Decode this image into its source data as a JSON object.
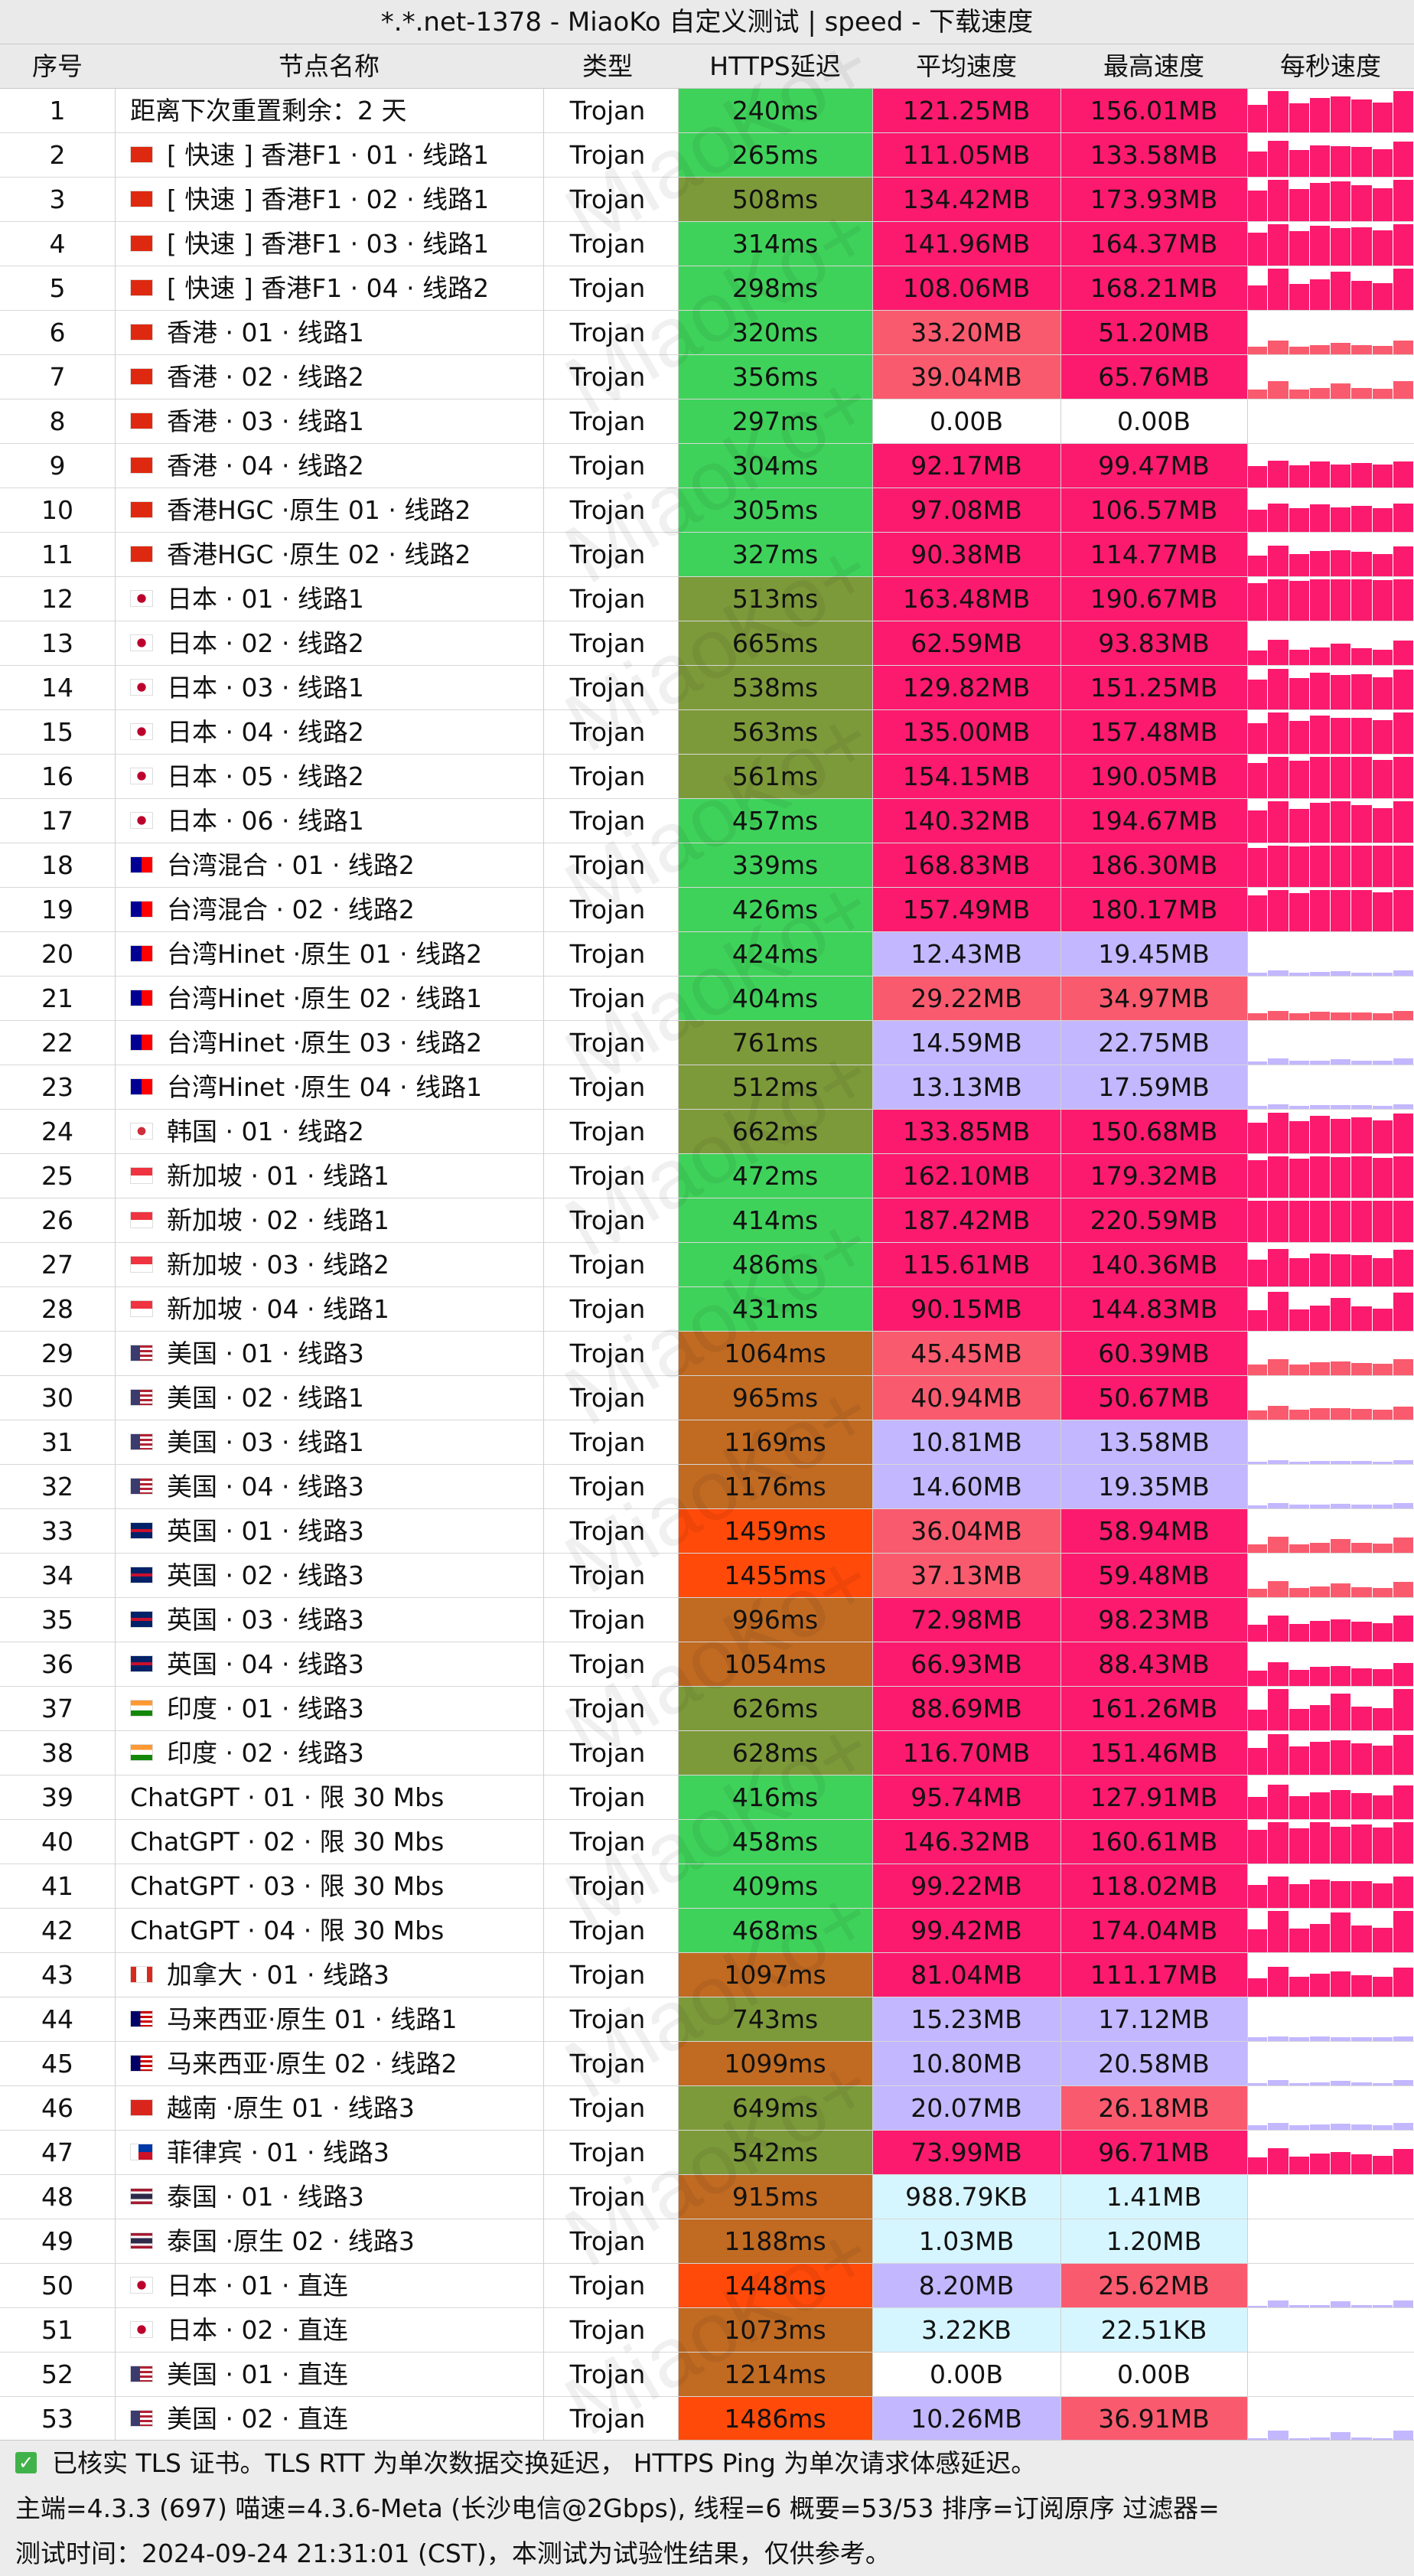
{
  "title": "*.*.net-1378 - MiaoKo 自定义测试 | speed - 下载速度",
  "headers": {
    "idx": "序号",
    "name": "节点名称",
    "type": "类型",
    "latency": "HTTPS延迟",
    "avg": "平均速度",
    "max": "最高速度",
    "per_sec": "每秒速度"
  },
  "watermark": "MiaoKo+",
  "rows": [
    {
      "idx": "1",
      "flag": "",
      "name": "距离下次重置剩余：2 天",
      "type": "Trojan",
      "latency": "240ms",
      "avg": "121.25MB",
      "max": "156.01MB"
    },
    {
      "idx": "2",
      "flag": "hk",
      "name": "[ 快速 ] 香港F1 · 01 · 线路1",
      "type": "Trojan",
      "latency": "265ms",
      "avg": "111.05MB",
      "max": "133.58MB"
    },
    {
      "idx": "3",
      "flag": "hk",
      "name": "[ 快速 ] 香港F1 · 02 · 线路1",
      "type": "Trojan",
      "latency": "508ms",
      "avg": "134.42MB",
      "max": "173.93MB"
    },
    {
      "idx": "4",
      "flag": "hk",
      "name": "[ 快速 ] 香港F1 · 03 · 线路1",
      "type": "Trojan",
      "latency": "314ms",
      "avg": "141.96MB",
      "max": "164.37MB"
    },
    {
      "idx": "5",
      "flag": "hk",
      "name": "[ 快速 ] 香港F1 · 04 · 线路2",
      "type": "Trojan",
      "latency": "298ms",
      "avg": "108.06MB",
      "max": "168.21MB"
    },
    {
      "idx": "6",
      "flag": "hk",
      "name": "香港 · 01 · 线路1",
      "type": "Trojan",
      "latency": "320ms",
      "avg": "33.20MB",
      "max": "51.20MB"
    },
    {
      "idx": "7",
      "flag": "hk",
      "name": "香港 · 02 · 线路2",
      "type": "Trojan",
      "latency": "356ms",
      "avg": "39.04MB",
      "max": "65.76MB"
    },
    {
      "idx": "8",
      "flag": "hk",
      "name": "香港 · 03 · 线路1",
      "type": "Trojan",
      "latency": "297ms",
      "avg": "0.00B",
      "max": "0.00B"
    },
    {
      "idx": "9",
      "flag": "hk",
      "name": "香港 · 04 · 线路2",
      "type": "Trojan",
      "latency": "304ms",
      "avg": "92.17MB",
      "max": "99.47MB"
    },
    {
      "idx": "10",
      "flag": "hk",
      "name": "香港HGC ·原生 01 · 线路2",
      "type": "Trojan",
      "latency": "305ms",
      "avg": "97.08MB",
      "max": "106.57MB"
    },
    {
      "idx": "11",
      "flag": "hk",
      "name": "香港HGC ·原生 02 · 线路2",
      "type": "Trojan",
      "latency": "327ms",
      "avg": "90.38MB",
      "max": "114.77MB"
    },
    {
      "idx": "12",
      "flag": "jp",
      "name": "日本 · 01 · 线路1",
      "type": "Trojan",
      "latency": "513ms",
      "avg": "163.48MB",
      "max": "190.67MB"
    },
    {
      "idx": "13",
      "flag": "jp",
      "name": "日本 · 02 · 线路2",
      "type": "Trojan",
      "latency": "665ms",
      "avg": "62.59MB",
      "max": "93.83MB"
    },
    {
      "idx": "14",
      "flag": "jp",
      "name": "日本 · 03 · 线路1",
      "type": "Trojan",
      "latency": "538ms",
      "avg": "129.82MB",
      "max": "151.25MB"
    },
    {
      "idx": "15",
      "flag": "jp",
      "name": "日本 · 04 · 线路2",
      "type": "Trojan",
      "latency": "563ms",
      "avg": "135.00MB",
      "max": "157.48MB"
    },
    {
      "idx": "16",
      "flag": "jp",
      "name": "日本 · 05 · 线路2",
      "type": "Trojan",
      "latency": "561ms",
      "avg": "154.15MB",
      "max": "190.05MB"
    },
    {
      "idx": "17",
      "flag": "jp",
      "name": "日本 · 06 · 线路1",
      "type": "Trojan",
      "latency": "457ms",
      "avg": "140.32MB",
      "max": "194.67MB"
    },
    {
      "idx": "18",
      "flag": "tw",
      "name": "台湾混合 · 01 · 线路2",
      "type": "Trojan",
      "latency": "339ms",
      "avg": "168.83MB",
      "max": "186.30MB"
    },
    {
      "idx": "19",
      "flag": "tw",
      "name": "台湾混合 · 02 · 线路2",
      "type": "Trojan",
      "latency": "426ms",
      "avg": "157.49MB",
      "max": "180.17MB"
    },
    {
      "idx": "20",
      "flag": "tw",
      "name": "台湾Hinet ·原生 01 · 线路2",
      "type": "Trojan",
      "latency": "424ms",
      "avg": "12.43MB",
      "max": "19.45MB"
    },
    {
      "idx": "21",
      "flag": "tw",
      "name": "台湾Hinet ·原生 02 · 线路1",
      "type": "Trojan",
      "latency": "404ms",
      "avg": "29.22MB",
      "max": "34.97MB"
    },
    {
      "idx": "22",
      "flag": "tw",
      "name": "台湾Hinet ·原生 03 · 线路2",
      "type": "Trojan",
      "latency": "761ms",
      "avg": "14.59MB",
      "max": "22.75MB"
    },
    {
      "idx": "23",
      "flag": "tw",
      "name": "台湾Hinet ·原生 04 · 线路1",
      "type": "Trojan",
      "latency": "512ms",
      "avg": "13.13MB",
      "max": "17.59MB"
    },
    {
      "idx": "24",
      "flag": "kr",
      "name": "韩国 · 01 · 线路2",
      "type": "Trojan",
      "latency": "662ms",
      "avg": "133.85MB",
      "max": "150.68MB"
    },
    {
      "idx": "25",
      "flag": "sg",
      "name": "新加坡 · 01 · 线路1",
      "type": "Trojan",
      "latency": "472ms",
      "avg": "162.10MB",
      "max": "179.32MB"
    },
    {
      "idx": "26",
      "flag": "sg",
      "name": "新加坡 · 02 · 线路1",
      "type": "Trojan",
      "latency": "414ms",
      "avg": "187.42MB",
      "max": "220.59MB"
    },
    {
      "idx": "27",
      "flag": "sg",
      "name": "新加坡 · 03 · 线路2",
      "type": "Trojan",
      "latency": "486ms",
      "avg": "115.61MB",
      "max": "140.36MB"
    },
    {
      "idx": "28",
      "flag": "sg",
      "name": "新加坡 · 04 · 线路1",
      "type": "Trojan",
      "latency": "431ms",
      "avg": "90.15MB",
      "max": "144.83MB"
    },
    {
      "idx": "29",
      "flag": "us",
      "name": "美国 · 01 · 线路3",
      "type": "Trojan",
      "latency": "1064ms",
      "avg": "45.45MB",
      "max": "60.39MB"
    },
    {
      "idx": "30",
      "flag": "us",
      "name": "美国 · 02 · 线路1",
      "type": "Trojan",
      "latency": "965ms",
      "avg": "40.94MB",
      "max": "50.67MB"
    },
    {
      "idx": "31",
      "flag": "us",
      "name": "美国 · 03 · 线路1",
      "type": "Trojan",
      "latency": "1169ms",
      "avg": "10.81MB",
      "max": "13.58MB"
    },
    {
      "idx": "32",
      "flag": "us",
      "name": "美国 · 04 · 线路3",
      "type": "Trojan",
      "latency": "1176ms",
      "avg": "14.60MB",
      "max": "19.35MB"
    },
    {
      "idx": "33",
      "flag": "gb",
      "name": "英国 · 01 · 线路3",
      "type": "Trojan",
      "latency": "1459ms",
      "avg": "36.04MB",
      "max": "58.94MB"
    },
    {
      "idx": "34",
      "flag": "gb",
      "name": "英国 · 02 · 线路3",
      "type": "Trojan",
      "latency": "1455ms",
      "avg": "37.13MB",
      "max": "59.48MB"
    },
    {
      "idx": "35",
      "flag": "gb",
      "name": "英国 · 03 · 线路3",
      "type": "Trojan",
      "latency": "996ms",
      "avg": "72.98MB",
      "max": "98.23MB"
    },
    {
      "idx": "36",
      "flag": "gb",
      "name": "英国 · 04 · 线路3",
      "type": "Trojan",
      "latency": "1054ms",
      "avg": "66.93MB",
      "max": "88.43MB"
    },
    {
      "idx": "37",
      "flag": "in",
      "name": "印度 · 01 · 线路3",
      "type": "Trojan",
      "latency": "626ms",
      "avg": "88.69MB",
      "max": "161.26MB"
    },
    {
      "idx": "38",
      "flag": "in",
      "name": "印度 · 02 · 线路3",
      "type": "Trojan",
      "latency": "628ms",
      "avg": "116.70MB",
      "max": "151.46MB"
    },
    {
      "idx": "39",
      "flag": "",
      "name": "ChatGPT · 01 · 限 30 Mbs",
      "type": "Trojan",
      "latency": "416ms",
      "avg": "95.74MB",
      "max": "127.91MB"
    },
    {
      "idx": "40",
      "flag": "",
      "name": "ChatGPT · 02 · 限 30 Mbs",
      "type": "Trojan",
      "latency": "458ms",
      "avg": "146.32MB",
      "max": "160.61MB"
    },
    {
      "idx": "41",
      "flag": "",
      "name": "ChatGPT · 03 · 限 30 Mbs",
      "type": "Trojan",
      "latency": "409ms",
      "avg": "99.22MB",
      "max": "118.02MB"
    },
    {
      "idx": "42",
      "flag": "",
      "name": "ChatGPT · 04 · 限 30 Mbs",
      "type": "Trojan",
      "latency": "468ms",
      "avg": "99.42MB",
      "max": "174.04MB"
    },
    {
      "idx": "43",
      "flag": "ca",
      "name": "加拿大 · 01 · 线路3",
      "type": "Trojan",
      "latency": "1097ms",
      "avg": "81.04MB",
      "max": "111.17MB"
    },
    {
      "idx": "44",
      "flag": "my",
      "name": "马来西亚·原生 01 · 线路1",
      "type": "Trojan",
      "latency": "743ms",
      "avg": "15.23MB",
      "max": "17.12MB"
    },
    {
      "idx": "45",
      "flag": "my",
      "name": "马来西亚·原生 02 · 线路2",
      "type": "Trojan",
      "latency": "1099ms",
      "avg": "10.80MB",
      "max": "20.58MB"
    },
    {
      "idx": "46",
      "flag": "vn",
      "name": "越南 ·原生 01 · 线路3",
      "type": "Trojan",
      "latency": "649ms",
      "avg": "20.07MB",
      "max": "26.18MB"
    },
    {
      "idx": "47",
      "flag": "ph",
      "name": "菲律宾 · 01 · 线路3",
      "type": "Trojan",
      "latency": "542ms",
      "avg": "73.99MB",
      "max": "96.71MB"
    },
    {
      "idx": "48",
      "flag": "th",
      "name": "泰国 · 01 · 线路3",
      "type": "Trojan",
      "latency": "915ms",
      "avg": "988.79KB",
      "max": "1.41MB"
    },
    {
      "idx": "49",
      "flag": "th",
      "name": "泰国 ·原生 02 · 线路3",
      "type": "Trojan",
      "latency": "1188ms",
      "avg": "1.03MB",
      "max": "1.20MB"
    },
    {
      "idx": "50",
      "flag": "jp",
      "name": "日本 · 01 · 直连",
      "type": "Trojan",
      "latency": "1448ms",
      "avg": "8.20MB",
      "max": "25.62MB"
    },
    {
      "idx": "51",
      "flag": "jp",
      "name": "日本 · 02 · 直连",
      "type": "Trojan",
      "latency": "1073ms",
      "avg": "3.22KB",
      "max": "22.51KB"
    },
    {
      "idx": "52",
      "flag": "us",
      "name": "美国 · 01 · 直连",
      "type": "Trojan",
      "latency": "1214ms",
      "avg": "0.00B",
      "max": "0.00B"
    },
    {
      "idx": "53",
      "flag": "us",
      "name": "美国 · 02 · 直连",
      "type": "Trojan",
      "latency": "1486ms",
      "avg": "10.26MB",
      "max": "36.91MB"
    }
  ],
  "footer": {
    "line1": "已核实 TLS 证书。TLS RTT 为单次数据交换延迟， HTTPS Ping 为单次请求体感延迟。",
    "line2": "主端=4.3.3 (697) 喵速=4.3.6-Meta (长沙电信@2Gbps), 线程=6 概要=53/53 排序=订阅原序 过滤器=",
    "line3": "测试时间：2024-09-24 21:31:01 (CST)，本测试为试验性结果，仅供参考。"
  },
  "colors": {
    "lat_green": "#3fd25a",
    "lat_olive": "#7d9a3a",
    "lat_orange": "#c06a22",
    "lat_red": "#ff4a0a",
    "speed_pink": "#fb1a6e",
    "speed_salmon": "#fa5a6e",
    "speed_lavender": "#c3b7ff",
    "speed_light": "#d6f6ff",
    "spark": "#f51a6e"
  }
}
